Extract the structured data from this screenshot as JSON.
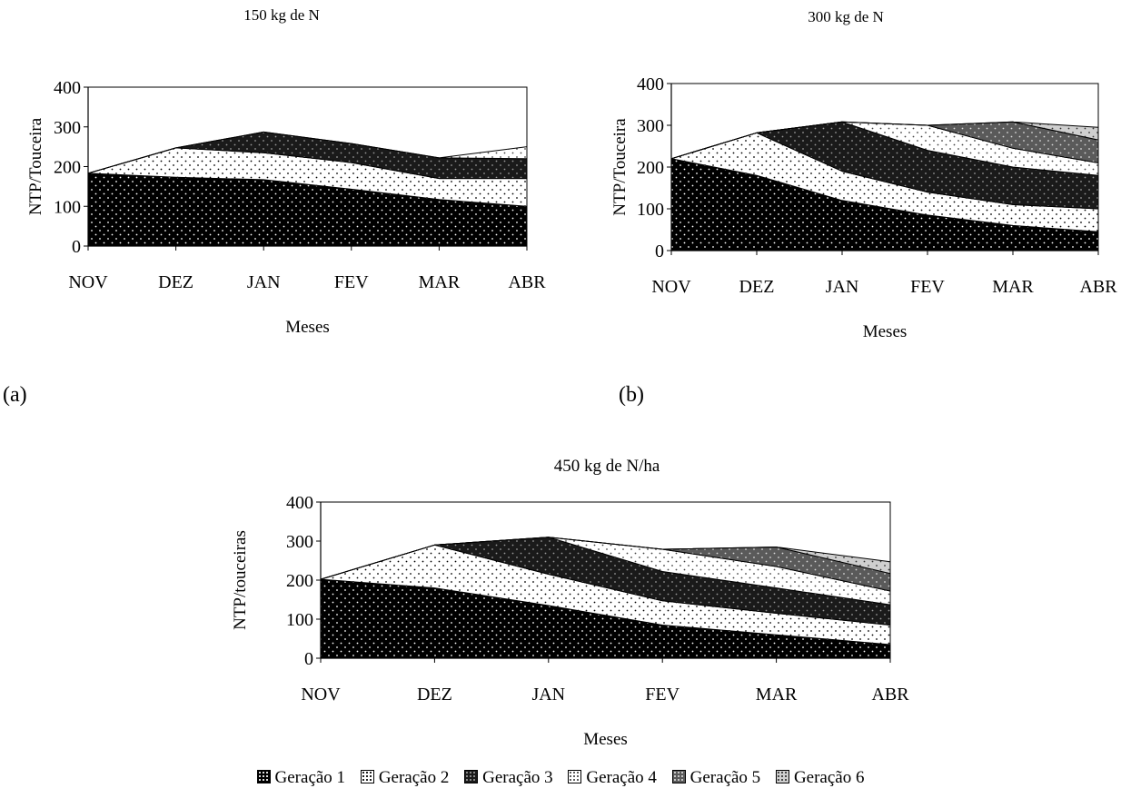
{
  "panels": [
    {
      "label": "(a)"
    },
    {
      "label": "(b)"
    }
  ],
  "legend": [
    {
      "name": "Geração 1",
      "fill": "#000000",
      "dots": "#ffffff"
    },
    {
      "name": "Geração 2",
      "fill": "#ffffff",
      "dots": "#000000"
    },
    {
      "name": "Geração 3",
      "fill": "#1a1a1a",
      "dots": "#9a9a9a"
    },
    {
      "name": "Geração 4",
      "fill": "#ffffff",
      "dots": "#444444"
    },
    {
      "name": "Geração 5",
      "fill": "#5a5a5a",
      "dots": "#d8d8d8"
    },
    {
      "name": "Geração 6",
      "fill": "#cfcfcf",
      "dots": "#333333"
    }
  ],
  "chart_data": [
    {
      "type": "area",
      "stacked": true,
      "title": "150 kg de N",
      "xlabel": "Meses",
      "ylabel": "NTP/Touceira",
      "categories": [
        "NOV",
        "DEZ",
        "JAN",
        "FEV",
        "MAR",
        "ABR"
      ],
      "ylim": [
        0,
        400
      ],
      "yticks": [
        0,
        100,
        200,
        300,
        400
      ],
      "series": [
        {
          "name": "Geração 1",
          "values": [
            183,
            173,
            167,
            143,
            117,
            100
          ]
        },
        {
          "name": "Geração 2",
          "values": [
            0,
            74,
            68,
            67,
            53,
            70
          ]
        },
        {
          "name": "Geração 3",
          "values": [
            0,
            0,
            52,
            48,
            52,
            50
          ]
        },
        {
          "name": "Geração 4",
          "values": [
            0,
            0,
            0,
            0,
            0,
            30
          ]
        }
      ]
    },
    {
      "type": "area",
      "stacked": true,
      "title": "300 kg de N",
      "xlabel": "Meses",
      "ylabel": "NTP/Touceira",
      "categories": [
        "NOV",
        "DEZ",
        "JAN",
        "FEV",
        "MAR",
        "ABR"
      ],
      "ylim": [
        0,
        400
      ],
      "yticks": [
        0,
        100,
        200,
        300,
        400
      ],
      "series": [
        {
          "name": "Geração 1",
          "values": [
            220,
            180,
            120,
            85,
            60,
            45
          ]
        },
        {
          "name": "Geração 2",
          "values": [
            0,
            102,
            70,
            55,
            50,
            55
          ]
        },
        {
          "name": "Geração 3",
          "values": [
            0,
            0,
            118,
            100,
            90,
            80
          ]
        },
        {
          "name": "Geração 4",
          "values": [
            0,
            0,
            0,
            60,
            45,
            30
          ]
        },
        {
          "name": "Geração 5",
          "values": [
            0,
            0,
            0,
            0,
            63,
            55
          ]
        },
        {
          "name": "Geração 6",
          "values": [
            0,
            0,
            0,
            0,
            0,
            30
          ]
        }
      ]
    },
    {
      "type": "area",
      "stacked": true,
      "title": "450 kg de N/ha",
      "xlabel": "Meses",
      "ylabel": "NTP/touceiras",
      "categories": [
        "NOV",
        "DEZ",
        "JAN",
        "FEV",
        "MAR",
        "ABR"
      ],
      "ylim": [
        0,
        400
      ],
      "yticks": [
        0,
        100,
        200,
        300,
        400
      ],
      "series": [
        {
          "name": "Geração 1",
          "values": [
            202,
            180,
            135,
            85,
            60,
            35
          ]
        },
        {
          "name": "Geração 2",
          "values": [
            0,
            110,
            80,
            62,
            55,
            50
          ]
        },
        {
          "name": "Geração 3",
          "values": [
            0,
            0,
            95,
            75,
            65,
            52
          ]
        },
        {
          "name": "Geração 4",
          "values": [
            0,
            0,
            0,
            57,
            55,
            35
          ]
        },
        {
          "name": "Geração 5",
          "values": [
            0,
            0,
            0,
            0,
            50,
            45
          ]
        },
        {
          "name": "Geração 6",
          "values": [
            0,
            0,
            0,
            0,
            0,
            30
          ]
        }
      ]
    }
  ]
}
